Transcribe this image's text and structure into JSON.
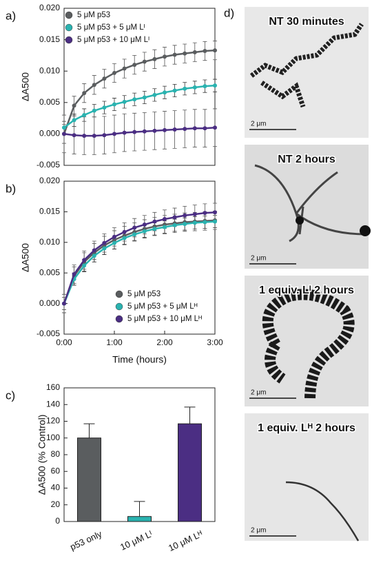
{
  "chart_data": [
    {
      "type": "line",
      "panel_label": "a)",
      "ylabel": "ΔA500",
      "legend": "upper-left",
      "x": [
        0,
        0.2,
        0.4,
        0.6,
        0.8,
        1.0,
        1.2,
        1.4,
        1.6,
        1.8,
        2.0,
        2.2,
        2.4,
        2.6,
        2.8,
        3.0
      ],
      "xlim": [
        0,
        3
      ],
      "ylim": [
        -0.005,
        0.02
      ],
      "yticks": [
        {
          "value": 0.02,
          "label": "0.020"
        },
        0.015,
        {
          "value": 0.01,
          "label": "0.010"
        },
        0.005,
        {
          "value": 0,
          "label": "0.000"
        },
        -0.005
      ],
      "series": [
        {
          "name": "5 μM p53",
          "color": "#5a5d5f",
          "values": [
            0,
            0.0045,
            0.0065,
            0.0078,
            0.0088,
            0.0097,
            0.0104,
            0.011,
            0.0115,
            0.0119,
            0.0123,
            0.0126,
            0.0128,
            0.013,
            0.0132,
            0.0133
          ],
          "errors": [
            0.0015,
            0.0015,
            0.0015,
            0.0015,
            0.0015,
            0.0015,
            0.0015,
            0.0015,
            0.0015,
            0.0015,
            0.0015,
            0.0015,
            0.0015,
            0.0015,
            0.0015,
            0.0015
          ]
        },
        {
          "name": "5 μM p53 + 5 μM Lᴵ",
          "color": "#2ab3b0",
          "values": [
            0.001,
            0.0022,
            0.003,
            0.0037,
            0.0042,
            0.0047,
            0.0051,
            0.0055,
            0.0058,
            0.0062,
            0.0066,
            0.0069,
            0.0072,
            0.0074,
            0.0076,
            0.0077
          ],
          "errors": [
            0.001,
            0.001,
            0.001,
            0.001,
            0.001,
            0.001,
            0.001,
            0.001,
            0.001,
            0.001,
            0.001,
            0.001,
            0.001,
            0.001,
            0.001,
            0.001
          ]
        },
        {
          "name": "5 μM p53 + 10 μM Lᴵ",
          "color": "#4b2e83",
          "values": [
            0,
            -0.0002,
            -0.0003,
            -0.0003,
            -0.0002,
            0,
            0.0002,
            0.0003,
            0.0004,
            0.0005,
            0.0006,
            0.0007,
            0.0008,
            0.0009,
            0.0009,
            0.001
          ],
          "errors": [
            0.003,
            0.003,
            0.003,
            0.003,
            0.003,
            0.003,
            0.003,
            0.003,
            0.003,
            0.003,
            0.003,
            0.003,
            0.003,
            0.003,
            0.003,
            0.003
          ]
        }
      ]
    },
    {
      "type": "line",
      "panel_label": "b)",
      "ylabel": "ΔA500",
      "xlabel": "Time (hours)",
      "legend": "lower-right",
      "x": [
        0,
        0.2,
        0.4,
        0.6,
        0.8,
        1.0,
        1.2,
        1.4,
        1.6,
        1.8,
        2.0,
        2.2,
        2.4,
        2.6,
        2.8,
        3.0
      ],
      "xlim": [
        0,
        3
      ],
      "ylim": [
        -0.005,
        0.02
      ],
      "xticks": [
        {
          "value": 0,
          "label": "0:00"
        },
        {
          "value": 1,
          "label": "1:00"
        },
        {
          "value": 2,
          "label": "2:00"
        },
        {
          "value": 3,
          "label": "3:00"
        }
      ],
      "yticks": [
        {
          "value": 0.02,
          "label": "0.020"
        },
        0.015,
        {
          "value": 0.01,
          "label": "0.010"
        },
        0.005,
        {
          "value": 0,
          "label": "0.000"
        },
        -0.005
      ],
      "series": [
        {
          "name": "5 μM p53",
          "color": "#5a5d5f",
          "values": [
            0,
            0.0045,
            0.0068,
            0.0083,
            0.0095,
            0.0104,
            0.0111,
            0.0117,
            0.0122,
            0.0126,
            0.0129,
            0.0131,
            0.0133,
            0.0134,
            0.0135,
            0.0136
          ],
          "errors": [
            0.0015,
            0.0015,
            0.0015,
            0.0015,
            0.0015,
            0.0015,
            0.0015,
            0.0015,
            0.0015,
            0.0015,
            0.0015,
            0.0015,
            0.0015,
            0.0015,
            0.0015,
            0.0015
          ]
        },
        {
          "name": "5 μM p53 + 5 μM Lᴴ",
          "color": "#2ab3b0",
          "values": [
            0,
            0.004,
            0.0062,
            0.0078,
            0.009,
            0.0099,
            0.0107,
            0.0113,
            0.0118,
            0.0122,
            0.0125,
            0.0128,
            0.013,
            0.0132,
            0.0133,
            0.0134
          ],
          "errors": [
            0.001,
            0.001,
            0.001,
            0.001,
            0.001,
            0.001,
            0.001,
            0.001,
            0.001,
            0.001,
            0.001,
            0.001,
            0.001,
            0.001,
            0.001,
            0.001
          ]
        },
        {
          "name": "5 μM p53 + 10 μM Lᴴ",
          "color": "#4b2e83",
          "values": [
            0,
            0.0048,
            0.0071,
            0.0087,
            0.0099,
            0.0109,
            0.0117,
            0.0124,
            0.0129,
            0.0134,
            0.0138,
            0.0141,
            0.0144,
            0.0146,
            0.0148,
            0.0149
          ],
          "errors": [
            0.0015,
            0.0015,
            0.0015,
            0.0015,
            0.0015,
            0.0015,
            0.0015,
            0.0015,
            0.0015,
            0.0015,
            0.0015,
            0.0015,
            0.0015,
            0.0015,
            0.0015,
            0.0015
          ]
        }
      ]
    },
    {
      "type": "bar",
      "panel_label": "c)",
      "ylabel": "ΔA500 (% Control)",
      "categories": [
        "p53 only",
        "10 μM Lᴵ",
        "10 μM Lᴴ"
      ],
      "values": [
        100,
        6,
        117
      ],
      "errors": [
        17,
        18,
        20
      ],
      "colors": [
        "#5a5d5f",
        "#2ab3b0",
        "#4b2e83"
      ],
      "ylim": [
        0,
        160
      ],
      "yticks": [
        0,
        20,
        40,
        60,
        80,
        100,
        120,
        140,
        160
      ]
    }
  ],
  "panel_d": {
    "label": "d)",
    "images": [
      {
        "title": "NT 30 minutes",
        "scale_bar": "2 μm"
      },
      {
        "title": "NT 2 hours",
        "scale_bar": "2 μm"
      },
      {
        "title": "1 equiv. Lᴵ 2 hours",
        "scale_bar": "2 μm"
      },
      {
        "title": "1 equiv. Lᴴ 2 hours",
        "scale_bar": "2 μm"
      }
    ]
  }
}
